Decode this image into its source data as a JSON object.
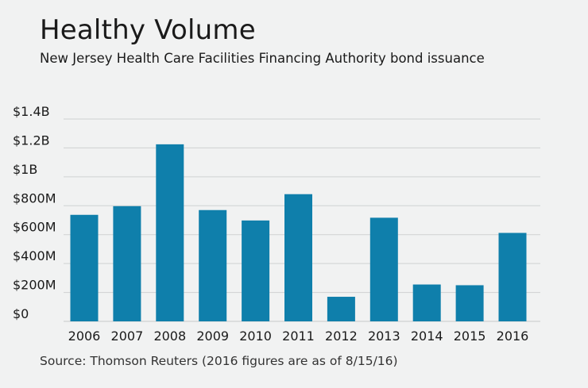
{
  "title": "Healthy Volume",
  "subtitle": "New Jersey Health Care Facilities Financing Authority bond issuance",
  "source": "Source: Thomson Reuters (2016 figures are as of 8/15/16)",
  "colors": {
    "bar": "#0f7fab",
    "grid": "#cfd1d2",
    "background": "#f1f2f2"
  },
  "chart_data": {
    "type": "bar",
    "title": "Healthy Volume",
    "subtitle": "New Jersey Health Care Facilities Financing Authority bond issuance",
    "xlabel": "",
    "ylabel": "",
    "ylim": [
      0,
      1400
    ],
    "y_unit": "millions USD",
    "grid": "horizontal",
    "yticks": [
      {
        "value": 0,
        "label": "$0"
      },
      {
        "value": 200,
        "label": "$200M"
      },
      {
        "value": 400,
        "label": "$400M"
      },
      {
        "value": 600,
        "label": "$600M"
      },
      {
        "value": 800,
        "label": "$800M"
      },
      {
        "value": 1000,
        "label": "$1B"
      },
      {
        "value": 1200,
        "label": "$1.2B"
      },
      {
        "value": 1400,
        "label": "$1.4B"
      }
    ],
    "categories": [
      "2006",
      "2007",
      "2008",
      "2009",
      "2010",
      "2011",
      "2012",
      "2013",
      "2014",
      "2015",
      "2016"
    ],
    "values": [
      737,
      797,
      1225,
      770,
      698,
      880,
      170,
      717,
      255,
      250,
      612
    ]
  }
}
